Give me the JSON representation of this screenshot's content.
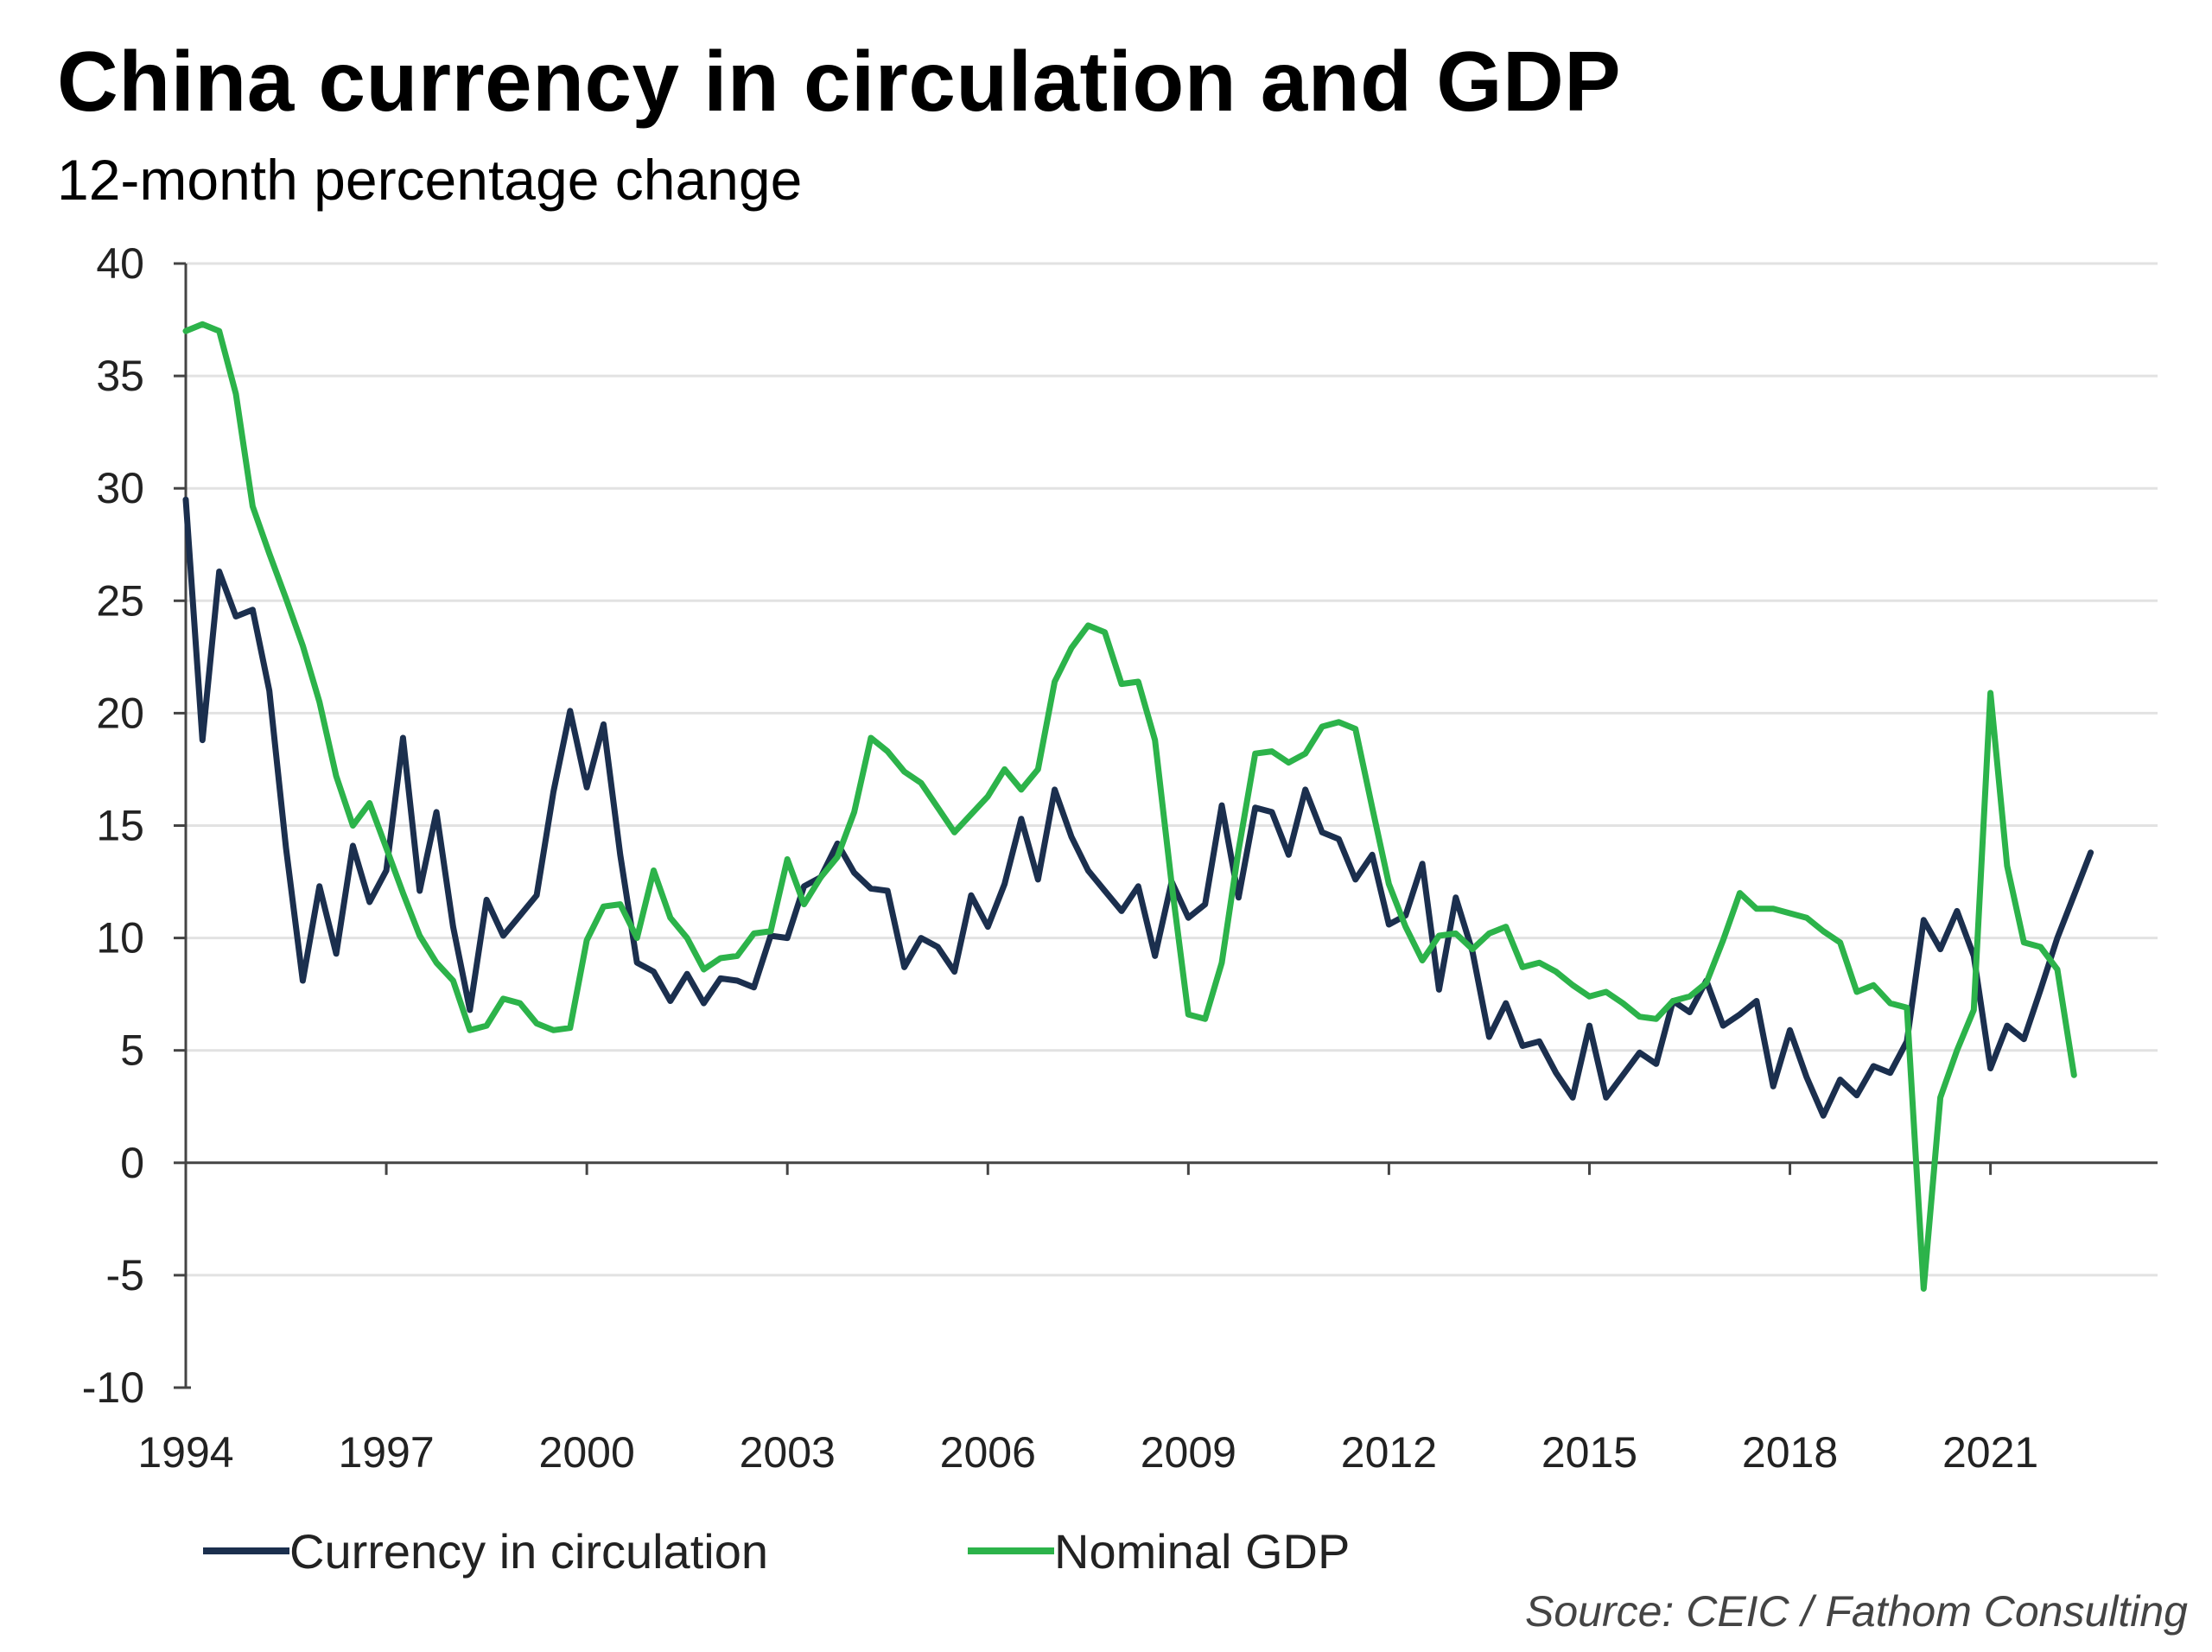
{
  "chart_data": {
    "type": "line",
    "title": "China currency in circulation and GDP",
    "subtitle": "12-month percentage change",
    "source": "Source: CEIC / Fathom Consulting",
    "xlim": [
      1994,
      2023.5
    ],
    "ylim": [
      -10,
      40
    ],
    "y_ticks": [
      40,
      35,
      30,
      25,
      20,
      15,
      10,
      5,
      0,
      -5,
      -10
    ],
    "x_ticks": [
      1994,
      1997,
      2000,
      2003,
      2006,
      2009,
      2012,
      2015,
      2018,
      2021
    ],
    "grid": "horizontal",
    "legend_position": "bottom-left",
    "series": [
      {
        "name": "Currency in circulation",
        "color": "#1b2f4e",
        "points": [
          [
            1994.0,
            29.5
          ],
          [
            1994.25,
            18.8
          ],
          [
            1994.5,
            26.3
          ],
          [
            1994.75,
            24.3
          ],
          [
            1995.0,
            24.6
          ],
          [
            1995.25,
            21.0
          ],
          [
            1995.5,
            14.0
          ],
          [
            1995.75,
            8.1
          ],
          [
            1996.0,
            12.3
          ],
          [
            1996.25,
            9.3
          ],
          [
            1996.5,
            14.1
          ],
          [
            1996.75,
            11.6
          ],
          [
            1997.0,
            13.0
          ],
          [
            1997.25,
            18.9
          ],
          [
            1997.5,
            12.1
          ],
          [
            1997.75,
            15.6
          ],
          [
            1998.0,
            10.5
          ],
          [
            1998.25,
            6.8
          ],
          [
            1998.5,
            11.7
          ],
          [
            1998.75,
            10.1
          ],
          [
            1999.0,
            11.0
          ],
          [
            1999.25,
            11.9
          ],
          [
            1999.5,
            16.5
          ],
          [
            1999.75,
            20.1
          ],
          [
            2000.0,
            16.7
          ],
          [
            2000.25,
            19.5
          ],
          [
            2000.5,
            13.7
          ],
          [
            2000.75,
            8.9
          ],
          [
            2001.0,
            8.5
          ],
          [
            2001.25,
            7.2
          ],
          [
            2001.5,
            8.4
          ],
          [
            2001.75,
            7.1
          ],
          [
            2002.0,
            8.2
          ],
          [
            2002.25,
            8.1
          ],
          [
            2002.5,
            7.8
          ],
          [
            2002.75,
            10.1
          ],
          [
            2003.0,
            10.0
          ],
          [
            2003.25,
            12.3
          ],
          [
            2003.5,
            12.7
          ],
          [
            2003.75,
            14.2
          ],
          [
            2004.0,
            12.9
          ],
          [
            2004.25,
            12.2
          ],
          [
            2004.5,
            12.1
          ],
          [
            2004.75,
            8.7
          ],
          [
            2005.0,
            10.0
          ],
          [
            2005.25,
            9.6
          ],
          [
            2005.5,
            8.5
          ],
          [
            2005.75,
            11.9
          ],
          [
            2006.0,
            10.5
          ],
          [
            2006.25,
            12.4
          ],
          [
            2006.5,
            15.3
          ],
          [
            2006.75,
            12.6
          ],
          [
            2007.0,
            16.6
          ],
          [
            2007.25,
            14.5
          ],
          [
            2007.5,
            13.0
          ],
          [
            2007.75,
            12.1
          ],
          [
            2008.0,
            11.2
          ],
          [
            2008.25,
            12.3
          ],
          [
            2008.5,
            9.2
          ],
          [
            2008.75,
            12.5
          ],
          [
            2009.0,
            10.9
          ],
          [
            2009.25,
            11.5
          ],
          [
            2009.5,
            15.9
          ],
          [
            2009.75,
            11.8
          ],
          [
            2010.0,
            15.8
          ],
          [
            2010.25,
            15.6
          ],
          [
            2010.5,
            13.7
          ],
          [
            2010.75,
            16.6
          ],
          [
            2011.0,
            14.7
          ],
          [
            2011.25,
            14.4
          ],
          [
            2011.5,
            12.6
          ],
          [
            2011.75,
            13.7
          ],
          [
            2012.0,
            10.6
          ],
          [
            2012.25,
            11.0
          ],
          [
            2012.5,
            13.3
          ],
          [
            2012.75,
            7.7
          ],
          [
            2013.0,
            11.8
          ],
          [
            2013.25,
            9.4
          ],
          [
            2013.5,
            5.6
          ],
          [
            2013.75,
            7.1
          ],
          [
            2014.0,
            5.2
          ],
          [
            2014.25,
            5.4
          ],
          [
            2014.5,
            4.0
          ],
          [
            2014.75,
            2.9
          ],
          [
            2015.0,
            6.1
          ],
          [
            2015.25,
            2.9
          ],
          [
            2015.5,
            3.9
          ],
          [
            2015.75,
            4.9
          ],
          [
            2016.0,
            4.4
          ],
          [
            2016.25,
            7.2
          ],
          [
            2016.5,
            6.7
          ],
          [
            2016.75,
            8.1
          ],
          [
            2017.0,
            6.1
          ],
          [
            2017.25,
            6.6
          ],
          [
            2017.5,
            7.2
          ],
          [
            2017.75,
            3.4
          ],
          [
            2018.0,
            5.9
          ],
          [
            2018.25,
            3.8
          ],
          [
            2018.5,
            2.1
          ],
          [
            2018.75,
            3.7
          ],
          [
            2019.0,
            3.0
          ],
          [
            2019.25,
            4.3
          ],
          [
            2019.5,
            4.0
          ],
          [
            2019.75,
            5.4
          ],
          [
            2020.0,
            10.8
          ],
          [
            2020.25,
            9.5
          ],
          [
            2020.5,
            11.2
          ],
          [
            2020.75,
            9.2
          ],
          [
            2021.0,
            4.2
          ],
          [
            2021.25,
            6.1
          ],
          [
            2021.5,
            5.5
          ],
          [
            2021.75,
            7.7
          ],
          [
            2022.0,
            10.0
          ],
          [
            2022.25,
            11.9
          ],
          [
            2022.5,
            13.8
          ]
        ]
      },
      {
        "name": "Nominal GDP",
        "color": "#2cb34a",
        "points": [
          [
            1994.0,
            37.0
          ],
          [
            1994.25,
            37.3
          ],
          [
            1994.5,
            37.0
          ],
          [
            1994.75,
            34.2
          ],
          [
            1995.0,
            29.2
          ],
          [
            1995.25,
            27.1
          ],
          [
            1995.5,
            25.1
          ],
          [
            1995.75,
            23.0
          ],
          [
            1996.0,
            20.5
          ],
          [
            1996.25,
            17.2
          ],
          [
            1996.5,
            15.0
          ],
          [
            1996.75,
            16.0
          ],
          [
            1997.0,
            14.0
          ],
          [
            1997.25,
            12.0
          ],
          [
            1997.5,
            10.1
          ],
          [
            1997.75,
            8.9
          ],
          [
            1998.0,
            8.1
          ],
          [
            1998.25,
            5.9
          ],
          [
            1998.5,
            6.1
          ],
          [
            1998.75,
            7.3
          ],
          [
            1999.0,
            7.1
          ],
          [
            1999.25,
            6.2
          ],
          [
            1999.5,
            5.9
          ],
          [
            1999.75,
            6.0
          ],
          [
            2000.0,
            9.9
          ],
          [
            2000.25,
            11.4
          ],
          [
            2000.5,
            11.5
          ],
          [
            2000.75,
            10.0
          ],
          [
            2001.0,
            13.0
          ],
          [
            2001.25,
            10.9
          ],
          [
            2001.5,
            10.0
          ],
          [
            2001.75,
            8.6
          ],
          [
            2002.0,
            9.1
          ],
          [
            2002.25,
            9.2
          ],
          [
            2002.5,
            10.2
          ],
          [
            2002.75,
            10.3
          ],
          [
            2003.0,
            13.5
          ],
          [
            2003.25,
            11.5
          ],
          [
            2003.5,
            12.7
          ],
          [
            2003.75,
            13.6
          ],
          [
            2004.0,
            15.6
          ],
          [
            2004.25,
            18.9
          ],
          [
            2004.5,
            18.3
          ],
          [
            2004.75,
            17.4
          ],
          [
            2005.0,
            16.9
          ],
          [
            2005.25,
            15.8
          ],
          [
            2005.5,
            14.7
          ],
          [
            2005.75,
            15.5
          ],
          [
            2006.0,
            16.3
          ],
          [
            2006.25,
            17.5
          ],
          [
            2006.5,
            16.6
          ],
          [
            2006.75,
            17.5
          ],
          [
            2007.0,
            21.4
          ],
          [
            2007.25,
            22.9
          ],
          [
            2007.5,
            23.9
          ],
          [
            2007.75,
            23.6
          ],
          [
            2008.0,
            21.3
          ],
          [
            2008.25,
            21.4
          ],
          [
            2008.5,
            18.8
          ],
          [
            2008.75,
            12.4
          ],
          [
            2009.0,
            6.6
          ],
          [
            2009.25,
            6.4
          ],
          [
            2009.5,
            8.9
          ],
          [
            2009.75,
            13.9
          ],
          [
            2010.0,
            18.2
          ],
          [
            2010.25,
            18.3
          ],
          [
            2010.5,
            17.8
          ],
          [
            2010.75,
            18.2
          ],
          [
            2011.0,
            19.4
          ],
          [
            2011.25,
            19.6
          ],
          [
            2011.5,
            19.3
          ],
          [
            2011.75,
            15.8
          ],
          [
            2012.0,
            12.4
          ],
          [
            2012.25,
            10.5
          ],
          [
            2012.5,
            9.0
          ],
          [
            2012.75,
            10.1
          ],
          [
            2013.0,
            10.2
          ],
          [
            2013.25,
            9.5
          ],
          [
            2013.5,
            10.2
          ],
          [
            2013.75,
            10.5
          ],
          [
            2014.0,
            8.7
          ],
          [
            2014.25,
            8.9
          ],
          [
            2014.5,
            8.5
          ],
          [
            2014.75,
            7.9
          ],
          [
            2015.0,
            7.4
          ],
          [
            2015.25,
            7.6
          ],
          [
            2015.5,
            7.1
          ],
          [
            2015.75,
            6.5
          ],
          [
            2016.0,
            6.4
          ],
          [
            2016.25,
            7.2
          ],
          [
            2016.5,
            7.4
          ],
          [
            2016.75,
            8.0
          ],
          [
            2017.0,
            9.9
          ],
          [
            2017.25,
            12.0
          ],
          [
            2017.5,
            11.3
          ],
          [
            2017.75,
            11.3
          ],
          [
            2018.0,
            11.1
          ],
          [
            2018.25,
            10.9
          ],
          [
            2018.5,
            10.3
          ],
          [
            2018.75,
            9.8
          ],
          [
            2019.0,
            7.6
          ],
          [
            2019.25,
            7.9
          ],
          [
            2019.5,
            7.1
          ],
          [
            2019.75,
            6.9
          ],
          [
            2020.0,
            -5.6
          ],
          [
            2020.25,
            2.9
          ],
          [
            2020.5,
            5.0
          ],
          [
            2020.75,
            6.8
          ],
          [
            2021.0,
            20.9
          ],
          [
            2021.25,
            13.2
          ],
          [
            2021.5,
            9.8
          ],
          [
            2021.75,
            9.6
          ],
          [
            2022.0,
            8.6
          ],
          [
            2022.25,
            3.9
          ]
        ]
      }
    ]
  }
}
